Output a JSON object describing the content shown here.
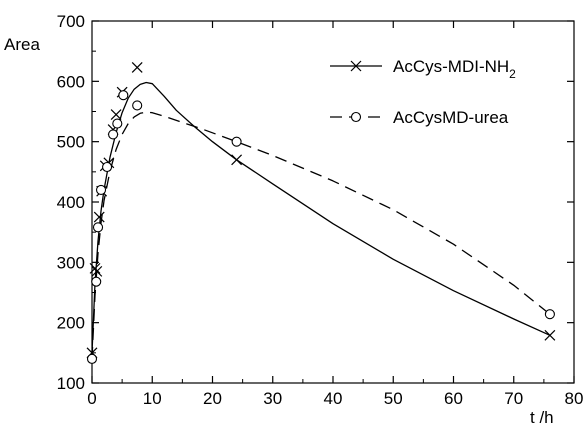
{
  "chart_data": {
    "type": "scatter",
    "title": "",
    "xlabel": "t /h",
    "ylabel": "Area",
    "xlim": [
      0,
      80
    ],
    "ylim": [
      100,
      700
    ],
    "xticks": [
      0,
      10,
      20,
      30,
      40,
      50,
      60,
      70,
      80
    ],
    "yticks": [
      100,
      200,
      300,
      400,
      500,
      600,
      700
    ],
    "legend_position": "top-right",
    "grid": false,
    "series": [
      {
        "name": "AcCys-MDI-NH₂",
        "marker": "x",
        "line_style": "solid",
        "color": "#000000",
        "points": [
          {
            "x": 0.0,
            "y": 150
          },
          {
            "x": 0.5,
            "y": 290
          },
          {
            "x": 0.8,
            "y": 285
          },
          {
            "x": 1.2,
            "y": 375
          },
          {
            "x": 1.6,
            "y": 418
          },
          {
            "x": 2.2,
            "y": 460
          },
          {
            "x": 2.8,
            "y": 465
          },
          {
            "x": 3.5,
            "y": 520
          },
          {
            "x": 4.0,
            "y": 545
          },
          {
            "x": 5.0,
            "y": 582
          },
          {
            "x": 7.5,
            "y": 623
          },
          {
            "x": 24.0,
            "y": 470
          },
          {
            "x": 76.0,
            "y": 179
          }
        ],
        "fit": [
          {
            "x": 0.0,
            "y": 150
          },
          {
            "x": 0.5,
            "y": 265
          },
          {
            "x": 1.0,
            "y": 335
          },
          {
            "x": 1.5,
            "y": 385
          },
          {
            "x": 2.0,
            "y": 420
          },
          {
            "x": 3.0,
            "y": 475
          },
          {
            "x": 4.0,
            "y": 515
          },
          {
            "x": 5.0,
            "y": 548
          },
          {
            "x": 6.0,
            "y": 572
          },
          {
            "x": 7.0,
            "y": 587
          },
          {
            "x": 8.0,
            "y": 595
          },
          {
            "x": 9.0,
            "y": 598
          },
          {
            "x": 10.0,
            "y": 596
          },
          {
            "x": 12.0,
            "y": 575
          },
          {
            "x": 14.0,
            "y": 552
          },
          {
            "x": 17.0,
            "y": 525
          },
          {
            "x": 20.0,
            "y": 500
          },
          {
            "x": 24.0,
            "y": 470
          },
          {
            "x": 30.0,
            "y": 430
          },
          {
            "x": 40.0,
            "y": 364
          },
          {
            "x": 50.0,
            "y": 305
          },
          {
            "x": 60.0,
            "y": 253
          },
          {
            "x": 70.0,
            "y": 206
          },
          {
            "x": 76.0,
            "y": 179
          }
        ]
      },
      {
        "name": "AcCysMD-urea",
        "marker": "circle",
        "line_style": "dashed",
        "color": "#000000",
        "points": [
          {
            "x": 0.0,
            "y": 140
          },
          {
            "x": 0.7,
            "y": 268
          },
          {
            "x": 1.0,
            "y": 358
          },
          {
            "x": 1.5,
            "y": 420
          },
          {
            "x": 2.5,
            "y": 458
          },
          {
            "x": 3.5,
            "y": 512
          },
          {
            "x": 4.2,
            "y": 530
          },
          {
            "x": 5.2,
            "y": 577
          },
          {
            "x": 7.5,
            "y": 560
          },
          {
            "x": 24.0,
            "y": 500
          },
          {
            "x": 76.0,
            "y": 214
          }
        ],
        "fit": [
          {
            "x": 0.0,
            "y": 140
          },
          {
            "x": 0.5,
            "y": 245
          },
          {
            "x": 1.0,
            "y": 315
          },
          {
            "x": 1.5,
            "y": 365
          },
          {
            "x": 2.0,
            "y": 402
          },
          {
            "x": 3.0,
            "y": 452
          },
          {
            "x": 4.0,
            "y": 487
          },
          {
            "x": 5.0,
            "y": 512
          },
          {
            "x": 6.0,
            "y": 530
          },
          {
            "x": 7.0,
            "y": 541
          },
          {
            "x": 8.0,
            "y": 547
          },
          {
            "x": 9.0,
            "y": 549
          },
          {
            "x": 10.0,
            "y": 548
          },
          {
            "x": 12.0,
            "y": 542
          },
          {
            "x": 15.0,
            "y": 532
          },
          {
            "x": 18.0,
            "y": 522
          },
          {
            "x": 21.0,
            "y": 511
          },
          {
            "x": 24.0,
            "y": 500
          },
          {
            "x": 30.0,
            "y": 477
          },
          {
            "x": 40.0,
            "y": 435
          },
          {
            "x": 50.0,
            "y": 387
          },
          {
            "x": 60.0,
            "y": 330
          },
          {
            "x": 70.0,
            "y": 262
          },
          {
            "x": 76.0,
            "y": 214
          }
        ]
      }
    ]
  }
}
